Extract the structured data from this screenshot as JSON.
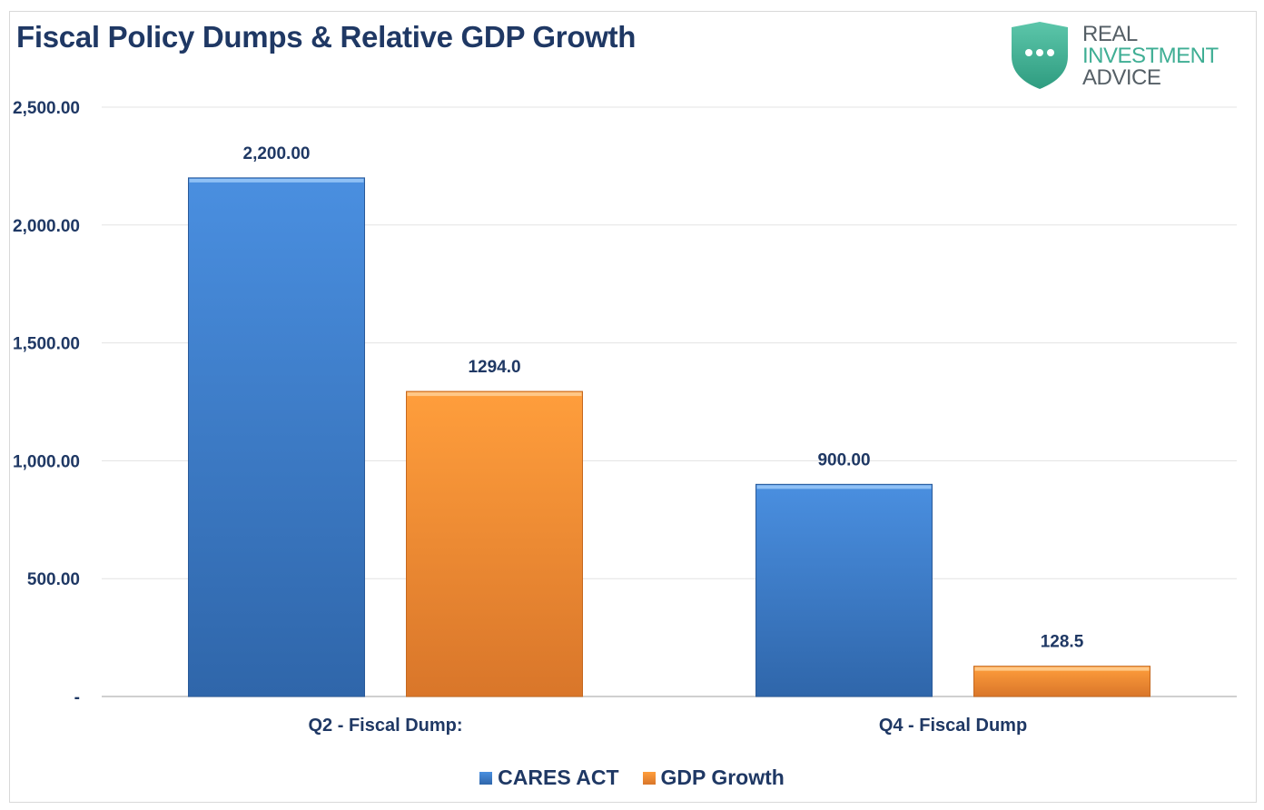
{
  "brand": {
    "line1": "REAL",
    "line2": "INVESTMENT",
    "line3": "ADVICE",
    "accent": "#3fae94"
  },
  "chart_data": {
    "type": "bar",
    "title": "Fiscal Policy Dumps & Relative GDP Growth",
    "categories": [
      "Q2 - Fiscal Dump:",
      "Q4 - Fiscal Dump"
    ],
    "series": [
      {
        "name": "CARES ACT",
        "values": [
          2200,
          900
        ],
        "labels": [
          "2,200.00",
          "900.00"
        ],
        "color": "#3b7dd0"
      },
      {
        "name": "GDP Growth",
        "values": [
          1294,
          128.5
        ],
        "labels": [
          "1294.0",
          "128.5"
        ],
        "color": "#f08a2a"
      }
    ],
    "yticks": [
      {
        "value": 0,
        "label": "-"
      },
      {
        "value": 500,
        "label": "500.00"
      },
      {
        "value": 1000,
        "label": "1,000.00"
      },
      {
        "value": 1500,
        "label": "1,500.00"
      },
      {
        "value": 2000,
        "label": "2,000.00"
      },
      {
        "value": 2500,
        "label": "2,500.00"
      }
    ],
    "ylim": [
      0,
      2500
    ],
    "grid": true,
    "legend_position": "bottom"
  }
}
